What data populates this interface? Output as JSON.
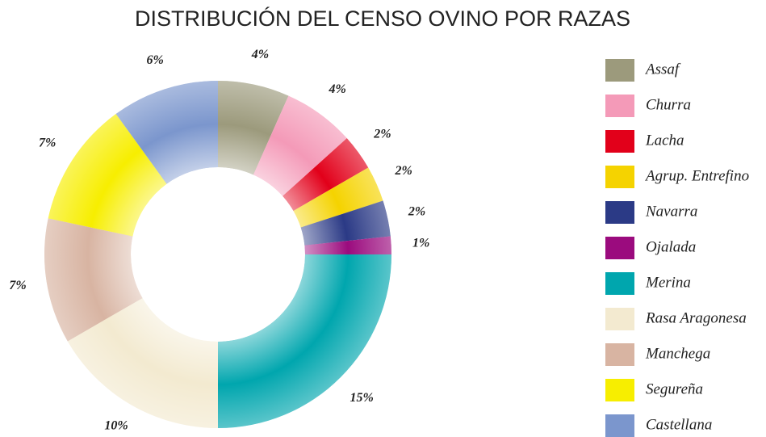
{
  "chart_data": {
    "type": "donut",
    "title": "DISTRIBUCIÓN DEL CENSO OVINO POR RAZAS",
    "categories": [
      "Assaf",
      "Churra",
      "Lacha",
      "Agrup. Entrefino",
      "Navarra",
      "Ojalada",
      "Merina",
      "Rasa Aragonesa",
      "Manchega",
      "Segureña",
      "Castellana"
    ],
    "values": [
      4,
      4,
      2,
      2,
      2,
      1,
      15,
      10,
      7,
      7,
      6
    ],
    "value_labels": [
      "4%",
      "4%",
      "2%",
      "2%",
      "2%",
      "1%",
      "15%",
      "10%",
      "7%",
      "7%",
      "6%"
    ],
    "colors": [
      "#9c9a7c",
      "#f49ab8",
      "#e2001a",
      "#f5d300",
      "#2b3a86",
      "#9b0b7e",
      "#00a6ae",
      "#f3ead0",
      "#d8b4a2",
      "#f7ee00",
      "#7b96cd"
    ],
    "legend": "right"
  }
}
